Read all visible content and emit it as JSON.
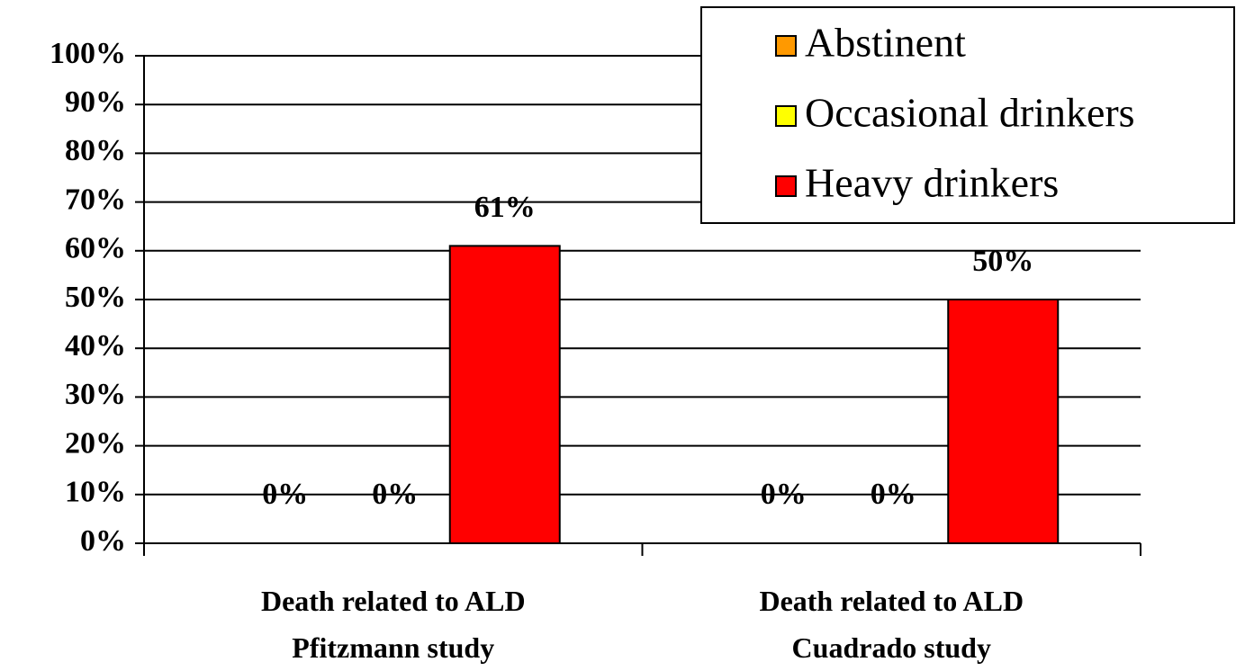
{
  "chart_data": {
    "type": "bar",
    "categories": [
      "Death related to ALD\nPfitzmann study",
      "Death related to ALD\nCuadrado study"
    ],
    "series": [
      {
        "name": "Abstinent",
        "color": "#ff9900",
        "values": [
          0,
          0
        ],
        "value_labels": [
          "0%",
          "0%"
        ]
      },
      {
        "name": "Occasional drinkers",
        "color": "#ffff00",
        "values": [
          0,
          0
        ],
        "value_labels": [
          "0%",
          "0%"
        ]
      },
      {
        "name": "Heavy drinkers",
        "color": "#ff0000",
        "values": [
          61,
          50
        ],
        "value_labels": [
          "61%",
          "50%"
        ]
      }
    ],
    "ylim": [
      0,
      100
    ],
    "yticks": [
      {
        "value": 0,
        "label": "0%"
      },
      {
        "value": 10,
        "label": "10%"
      },
      {
        "value": 20,
        "label": "20%"
      },
      {
        "value": 30,
        "label": "30%"
      },
      {
        "value": 40,
        "label": "40%"
      },
      {
        "value": 50,
        "label": "50%"
      },
      {
        "value": 60,
        "label": "60%"
      },
      {
        "value": 70,
        "label": "70%"
      },
      {
        "value": 80,
        "label": "80%"
      },
      {
        "value": 90,
        "label": "90%"
      },
      {
        "value": 100,
        "label": "100%"
      }
    ],
    "grid": true,
    "legend": "top-right"
  }
}
